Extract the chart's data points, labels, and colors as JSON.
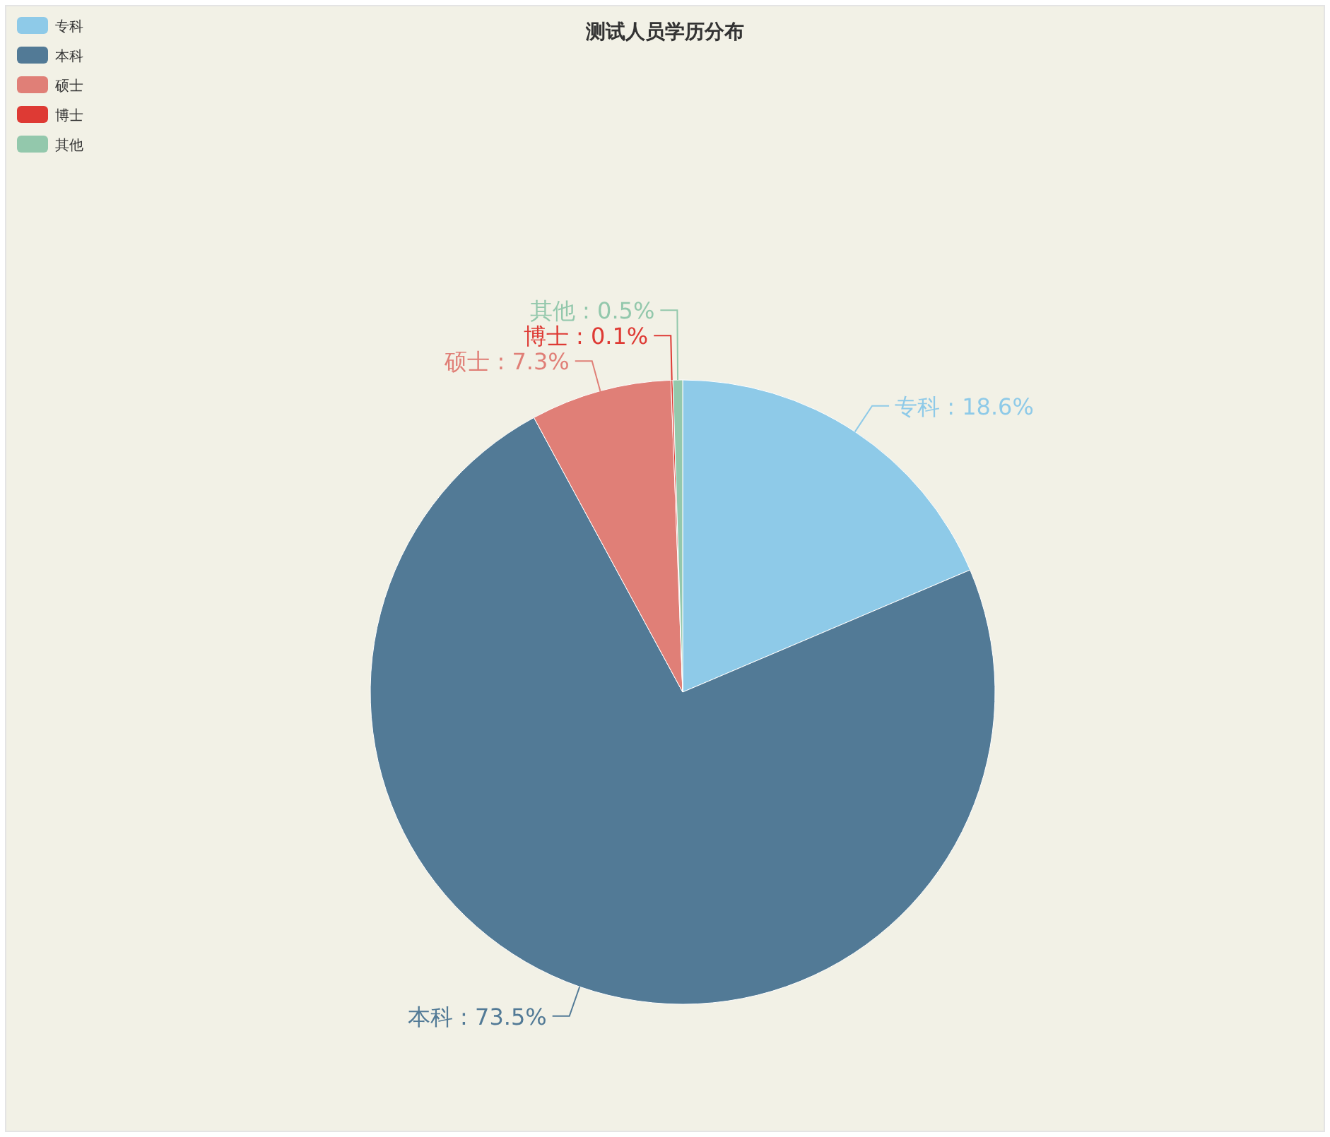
{
  "chart_data": {
    "type": "pie",
    "title": "测试人员学历分布",
    "categories": [
      "专科",
      "本科",
      "硕士",
      "博士",
      "其他"
    ],
    "values": [
      18.6,
      73.5,
      7.3,
      0.1,
      0.5
    ],
    "colors": [
      "#8ecae8",
      "#527a96",
      "#e07f77",
      "#de3a34",
      "#93c8ac"
    ],
    "value_labels": [
      "专科 : 18.6%",
      "本科 : 73.5%",
      "硕士 : 7.3%",
      "博士 : 0.1%",
      "其他 : 0.5%"
    ],
    "legend": "top left"
  }
}
